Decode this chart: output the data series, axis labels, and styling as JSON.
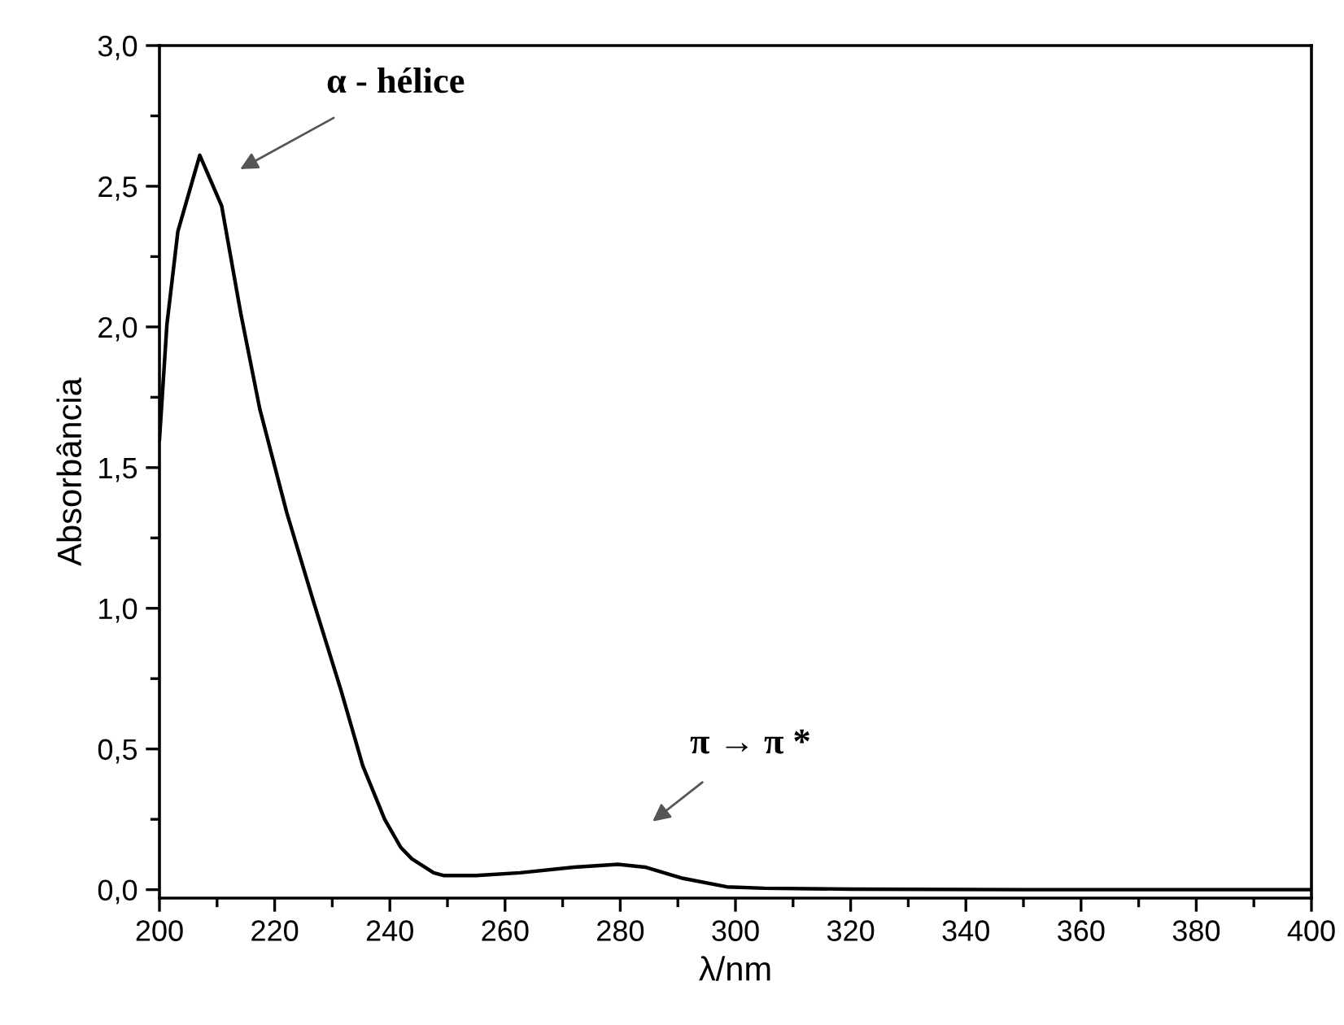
{
  "chart_data": {
    "type": "line",
    "xlabel": "λ/nm",
    "ylabel": "Absorbância",
    "x": [
      200,
      201.3,
      203.2,
      207.0,
      210.8,
      214.1,
      217.4,
      222.1,
      226.8,
      231.5,
      235.3,
      239.1,
      241.9,
      243.8,
      247.6,
      249.4,
      255,
      262.6,
      272,
      279.6,
      284.3,
      290.9,
      298.5,
      305,
      320,
      350,
      400
    ],
    "series": [
      {
        "color": "#000000",
        "values": [
          1.6,
          2.01,
          2.34,
          2.61,
          2.43,
          2.05,
          1.71,
          1.34,
          1.02,
          0.71,
          0.44,
          0.25,
          0.15,
          0.11,
          0.06,
          0.05,
          0.05,
          0.06,
          0.08,
          0.09,
          0.08,
          0.04,
          0.01,
          0.005,
          0.002,
          0,
          0
        ]
      }
    ],
    "xlim": [
      200,
      400
    ],
    "xticks": [
      200,
      220,
      240,
      260,
      280,
      300,
      320,
      340,
      360,
      380,
      400
    ],
    "ylim": [
      -0.03,
      3.0
    ],
    "yticks": [
      {
        "value": 0,
        "label": "0,0"
      },
      {
        "value": 0.5,
        "label": "0,5"
      },
      {
        "value": 1.0,
        "label": "1,0"
      },
      {
        "value": 1.5,
        "label": "1,5"
      },
      {
        "value": 2.0,
        "label": "2,0"
      },
      {
        "value": 2.5,
        "label": "2,5"
      },
      {
        "value": 3.0,
        "label": "3,0"
      }
    ],
    "annotations": [
      "α - hélice",
      "π → π *"
    ],
    "grid": false,
    "legend": false,
    "line_style": "solid",
    "marker": "none"
  }
}
